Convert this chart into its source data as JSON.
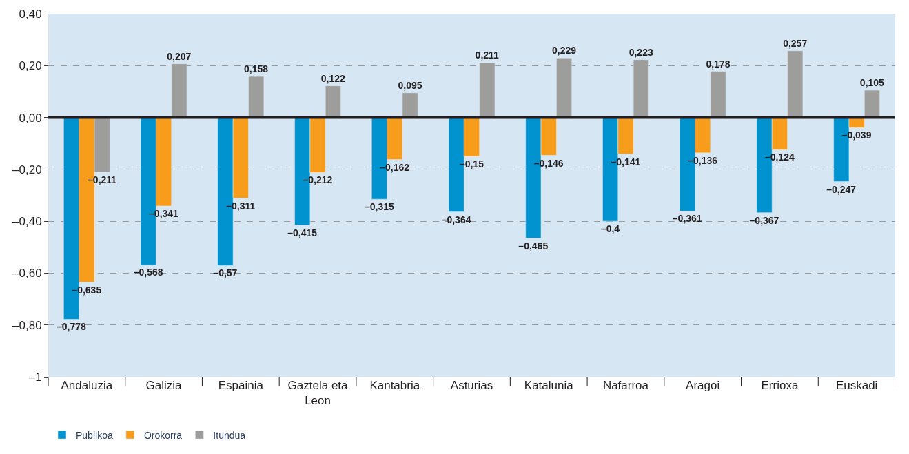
{
  "chart_data": {
    "type": "bar",
    "categories": [
      "Andaluzia",
      "Galizia",
      "Espainia",
      "Gaztela eta Leon",
      "Kantabria",
      "Asturias",
      "Katalunia",
      "Nafarroa",
      "Aragoi",
      "Errioxa",
      "Euskadi"
    ],
    "series": [
      {
        "name": "Publikoa",
        "color": "#0093d0",
        "values": [
          -0.778,
          -0.568,
          -0.57,
          -0.415,
          -0.315,
          -0.364,
          -0.465,
          -0.4,
          -0.361,
          -0.367,
          -0.247
        ],
        "value_labels": [
          "–0,778",
          "–0,568",
          "–0,57",
          "–0,415",
          "–0,315",
          "–0,364",
          "–0,465",
          "–0,4",
          "–0,361",
          "–0,367",
          "–0,247"
        ]
      },
      {
        "name": "Orokorra",
        "color": "#f89c1c",
        "values": [
          -0.635,
          -0.341,
          -0.311,
          -0.212,
          -0.162,
          -0.15,
          -0.146,
          -0.141,
          -0.136,
          -0.124,
          -0.039
        ],
        "value_labels": [
          "–0,635",
          "–0,341",
          "–0,311",
          "–0,212",
          "–0,162",
          "–0,15",
          "–0,146",
          "–0,141",
          "–0,136",
          "–0,124",
          "–0,039"
        ]
      },
      {
        "name": "Itundua",
        "color": "#9d9d9c",
        "values": [
          -0.211,
          0.207,
          0.158,
          0.122,
          0.095,
          0.211,
          0.229,
          0.223,
          0.178,
          0.257,
          0.105
        ],
        "value_labels": [
          "–0,211",
          "0,207",
          "0,158",
          "0,122",
          "0,095",
          "0,211",
          "0,229",
          "0,223",
          "0,178",
          "0,257",
          "0,105"
        ]
      }
    ],
    "ylim": [
      -1,
      0.4
    ],
    "yticks": [
      {
        "value": 0.4,
        "label": "0,40"
      },
      {
        "value": 0.2,
        "label": "0,20"
      },
      {
        "value": 0,
        "label": "0,00"
      },
      {
        "value": -0.2,
        "label": "–0,20"
      },
      {
        "value": -0.4,
        "label": "–0,40"
      },
      {
        "value": -0.6,
        "label": "–0,60"
      },
      {
        "value": -0.8,
        "label": "–0,80"
      },
      {
        "value": -1,
        "label": "–1"
      }
    ],
    "ref_lines": [
      {
        "axis": "y",
        "value": 0,
        "color": "#231f20"
      }
    ],
    "grid": "y",
    "legend": "bottom left"
  }
}
